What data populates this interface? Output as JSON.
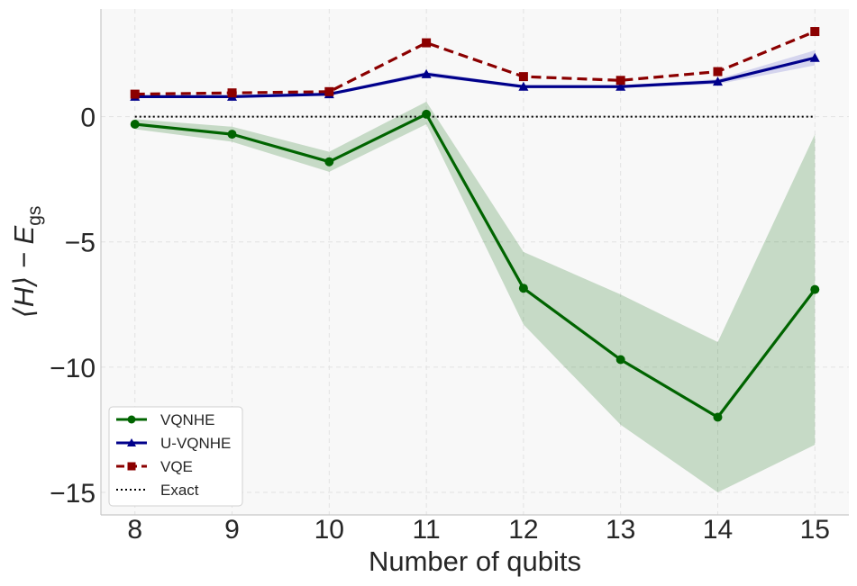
{
  "chart_data": {
    "type": "line",
    "title": "",
    "xlabel": "Number of qubits",
    "ylabel_main": "⟨H⟩ − E",
    "ylabel_sub": "gs",
    "x": [
      8,
      9,
      10,
      11,
      12,
      13,
      14,
      15
    ],
    "xticks": [
      8,
      9,
      10,
      11,
      12,
      13,
      14,
      15
    ],
    "yticks": [
      0,
      -5,
      -10,
      -15
    ],
    "ytick_labels": [
      "0",
      "−5",
      "−10",
      "−15"
    ],
    "xlim": [
      7.65,
      15.35
    ],
    "ylim": [
      -15.9,
      4.3
    ],
    "grid": true,
    "legend_position": "lower-left",
    "series": [
      {
        "name": "VQNHE",
        "values": [
          -0.3,
          -0.7,
          -1.8,
          0.1,
          -6.85,
          -9.7,
          -12.0,
          -6.9
        ],
        "band_upper": [
          -0.1,
          -0.4,
          -1.4,
          0.6,
          -5.4,
          -7.1,
          -9.0,
          -0.7
        ],
        "band_lower": [
          -0.5,
          -1.0,
          -2.2,
          -0.3,
          -8.3,
          -12.3,
          -15.0,
          -13.1
        ],
        "color": "#006400",
        "band_color": "#006400",
        "marker": "circle",
        "linestyle": "solid"
      },
      {
        "name": "U-VQNHE",
        "values": [
          0.8,
          0.8,
          0.9,
          1.7,
          1.2,
          1.2,
          1.4,
          2.35
        ],
        "band_upper": [
          0.85,
          0.85,
          0.95,
          1.8,
          1.25,
          1.25,
          1.5,
          2.65
        ],
        "band_lower": [
          0.75,
          0.75,
          0.85,
          1.6,
          1.15,
          1.15,
          1.3,
          2.05
        ],
        "color": "#00008B",
        "band_color": "#4b4bc8",
        "marker": "triangle",
        "linestyle": "solid"
      },
      {
        "name": "VQE",
        "values": [
          0.9,
          0.95,
          1.0,
          2.95,
          1.6,
          1.45,
          1.8,
          3.4
        ],
        "color": "#8B0000",
        "marker": "square",
        "linestyle": "dashed"
      },
      {
        "name": "Exact",
        "values": [
          0,
          0,
          0,
          0,
          0,
          0,
          0,
          0
        ],
        "color": "#000000",
        "marker": "none",
        "linestyle": "dotted"
      }
    ]
  }
}
